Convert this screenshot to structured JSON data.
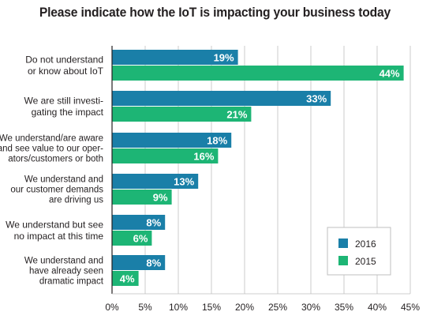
{
  "chart_data": {
    "type": "bar",
    "orientation": "horizontal",
    "title": "Please indicate how the IoT is impacting your business today",
    "categories": [
      [
        "Do not understand",
        "or know about IoT"
      ],
      [
        "We are still investi-",
        "gating the impact"
      ],
      [
        "We understand/are aware",
        "and see value to our oper-",
        "ators/customers or both"
      ],
      [
        "We understand and",
        "our customer demands",
        "are driving us"
      ],
      [
        "We understand but see",
        "no impact at this time"
      ],
      [
        "We understand and",
        "have already seen",
        "dramatic impact"
      ]
    ],
    "series": [
      {
        "name": "2016",
        "color": "#1a7fa8",
        "values": [
          19,
          33,
          18,
          13,
          8,
          8
        ]
      },
      {
        "name": "2015",
        "color": "#1db575",
        "values": [
          44,
          21,
          16,
          9,
          6,
          4
        ]
      }
    ],
    "value_suffix": "%",
    "xlim": [
      0,
      45
    ],
    "xticks": [
      0,
      5,
      10,
      15,
      20,
      25,
      30,
      35,
      40,
      45
    ],
    "tick_labels": [
      "0%",
      "5%",
      "10%",
      "15%",
      "20%",
      "25%",
      "30%",
      "35%",
      "40%",
      "45%"
    ],
    "grid": true,
    "legend_position": "bottom-right"
  }
}
